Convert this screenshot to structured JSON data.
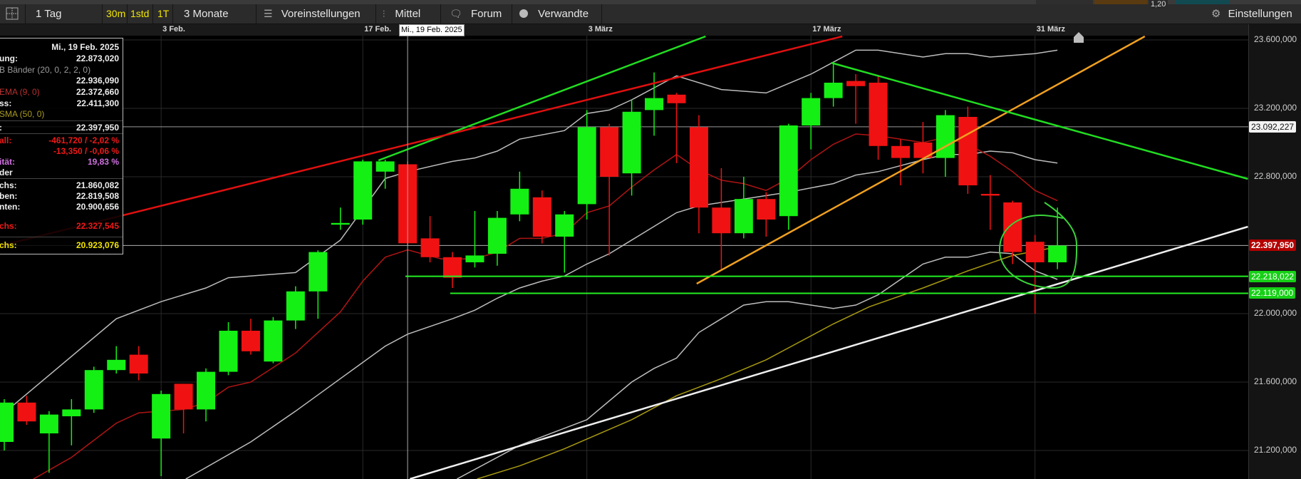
{
  "top_strip": {
    "value": "1,20"
  },
  "toolbar": {
    "layout_icon": "grid-layout-icon",
    "period": "1 Tag",
    "intervals": [
      "30m",
      "1std",
      "1T"
    ],
    "range": "3 Monate",
    "presets": "Voreinstellungen",
    "indicators": "Mittel",
    "forum": "Forum",
    "related": "Verwandte",
    "settings": "Einstellungen"
  },
  "info_panel": {
    "date": "Mi., 19 Feb. 2025",
    "open_label": "ung:",
    "open_value": "22.873,020",
    "bb_legend": "B Bänder (20, 0, 2, 2, 0)",
    "bb_value": "22.936,090",
    "ema_legend": "EMA (9, 0)",
    "ema_value": "22.372,660",
    "close_label": "ss:",
    "close_value": "22.411,300",
    "sma_legend": "SMA (50, 0)",
    "last_label": ":",
    "last_value": "22.397,950",
    "change_label": "all:",
    "change_value": "-461,720 / -2,02 %",
    "change2_value": "-13,350 / -0,06 %",
    "volatility_label": "ität:",
    "volatility_value": "19,83 %",
    "bands_label": "der",
    "row1_label": "chs:",
    "row1_value": "21.860,082",
    "row2_label": "ben:",
    "row2_value": "22.819,508",
    "row3_label": "nten:",
    "row3_value": "20.900,656",
    "row4_label": "chs:",
    "row4_value": "22.327,545",
    "row5_label": "chs:",
    "row5_value": "20.923,076"
  },
  "crosshair": {
    "index": 18,
    "label": "Mi., 19 Feb. 2025"
  },
  "colors": {
    "up": "#14f014",
    "down": "#f01212",
    "bb": "#bdbdbd",
    "ema": "#b01414",
    "sma": "#a89a10",
    "background": "#000000"
  },
  "chart_data": {
    "type": "candlestick",
    "ylim": [
      21033300,
      23650000
    ],
    "grid": true,
    "x_ticks": [
      {
        "index": 7,
        "label": "3 Feb."
      },
      {
        "index": 16,
        "label": "17 Feb."
      },
      {
        "index": 26,
        "label": "3 März"
      },
      {
        "index": 36,
        "label": "17 März"
      },
      {
        "index": 46,
        "label": "31 März"
      }
    ],
    "y_ticks": [
      {
        "value": 23600000,
        "label": "23.600,000"
      },
      {
        "value": 23200000,
        "label": "23.200,000"
      },
      {
        "value": 22800000,
        "label": "22.800,000"
      },
      {
        "value": 22400000,
        "label": ""
      },
      {
        "value": 22000000,
        "label": "22.000,000"
      },
      {
        "value": 21600000,
        "label": "21.600,000"
      },
      {
        "value": 21200000,
        "label": "21.200,000"
      }
    ],
    "candles_ohlc": [
      [
        21250000,
        21500000,
        21200000,
        21480000
      ],
      [
        21480000,
        21520000,
        21350000,
        21370000
      ],
      [
        21300000,
        21430000,
        21070000,
        21410000
      ],
      [
        21400000,
        21500000,
        21230000,
        21440000
      ],
      [
        21440000,
        21690000,
        21420000,
        21670000
      ],
      [
        21670000,
        21810000,
        21650000,
        21730000
      ],
      [
        21760000,
        21810000,
        21610000,
        21650000
      ],
      [
        21270000,
        21550000,
        21050000,
        21530000
      ],
      [
        21590000,
        21590000,
        21300000,
        21440000
      ],
      [
        21440000,
        21680000,
        21370000,
        21660000
      ],
      [
        21660000,
        21950000,
        21640000,
        21900000
      ],
      [
        21900000,
        21970000,
        21760000,
        21780000
      ],
      [
        21720000,
        21980000,
        21710000,
        21960000
      ],
      [
        21960000,
        22160000,
        21910000,
        22130000
      ],
      [
        22130000,
        22370000,
        21970000,
        22360000
      ],
      [
        22520000,
        22620000,
        22490000,
        22530000
      ],
      [
        22550000,
        22900000,
        22520000,
        22890000
      ],
      [
        22830000,
        22900000,
        22730000,
        22890000
      ],
      [
        22873020,
        22890000,
        22400000,
        22411300
      ],
      [
        22440000,
        22570000,
        22300000,
        22330000
      ],
      [
        22330000,
        22360000,
        22150000,
        22210000
      ],
      [
        22300000,
        22600000,
        22270000,
        22340000
      ],
      [
        22350000,
        22600000,
        22280000,
        22560000
      ],
      [
        22580000,
        22830000,
        22540000,
        22730000
      ],
      [
        22680000,
        22720000,
        22410000,
        22450000
      ],
      [
        22450000,
        22600000,
        22240000,
        22580000
      ],
      [
        22640000,
        23190000,
        22550000,
        23090000
      ],
      [
        23090000,
        23110000,
        22340000,
        22800000
      ],
      [
        22820000,
        23250000,
        22690000,
        23180000
      ],
      [
        23190000,
        23410000,
        23040000,
        23260000
      ],
      [
        23280000,
        23290000,
        22880000,
        23230000
      ],
      [
        23090000,
        23160000,
        22470000,
        22620000
      ],
      [
        22620000,
        22850000,
        22260000,
        22470000
      ],
      [
        22470000,
        22800000,
        22440000,
        22670000
      ],
      [
        22670000,
        22710000,
        22450000,
        22550000
      ],
      [
        22570000,
        23110000,
        22490000,
        23100000
      ],
      [
        23100000,
        23290000,
        22960000,
        23260000
      ],
      [
        23260000,
        23460000,
        23210000,
        23350000
      ],
      [
        23360000,
        23400000,
        23110000,
        23330000
      ],
      [
        23350000,
        23390000,
        22900000,
        22980000
      ],
      [
        22980000,
        23020000,
        22750000,
        22910000
      ],
      [
        23000000,
        23120000,
        22820000,
        22910000
      ],
      [
        22910000,
        23190000,
        22800000,
        23160000
      ],
      [
        23150000,
        23210000,
        22700000,
        22750000
      ],
      [
        22700000,
        22810000,
        22490000,
        22690000
      ],
      [
        22650000,
        22660000,
        22290000,
        22360000
      ],
      [
        22420000,
        22460000,
        22000000,
        22300000
      ],
      [
        22300000,
        22620000,
        22260000,
        22397950
      ]
    ],
    "overlays": [
      {
        "name": "B Bänder (20, 0, 2, 2, 0)",
        "role": "bb-upper",
        "points": [
          [
            0,
            21420000
          ],
          [
            5,
            21970000
          ],
          [
            7,
            22070000
          ],
          [
            9,
            22150000
          ],
          [
            10,
            22210000
          ],
          [
            13,
            22240000
          ],
          [
            15,
            22430000
          ],
          [
            17,
            22790000
          ],
          [
            18,
            22830000
          ],
          [
            20,
            22890000
          ],
          [
            21,
            22910000
          ],
          [
            22,
            22950000
          ],
          [
            23,
            23020000
          ],
          [
            25,
            23070000
          ],
          [
            26,
            23170000
          ],
          [
            27,
            23190000
          ],
          [
            28,
            23250000
          ],
          [
            30,
            23390000
          ],
          [
            32,
            23310000
          ],
          [
            34,
            23290000
          ],
          [
            36,
            23400000
          ],
          [
            37,
            23470000
          ],
          [
            38,
            23540000
          ],
          [
            39,
            23540000
          ],
          [
            41,
            23500000
          ],
          [
            42,
            23520000
          ],
          [
            43,
            23520000
          ],
          [
            44,
            23500000
          ],
          [
            46,
            23520000
          ],
          [
            47,
            23540000
          ]
        ]
      },
      {
        "name": "B Bänder (20, 0, 2, 2, 0)",
        "role": "bb-middle",
        "points": [
          [
            8.1,
            21033300
          ],
          [
            11,
            21250000
          ],
          [
            13,
            21430000
          ],
          [
            15,
            21620000
          ],
          [
            17,
            21810000
          ],
          [
            18,
            21880000
          ],
          [
            20,
            21970000
          ],
          [
            21,
            22020000
          ],
          [
            22,
            22090000
          ],
          [
            23,
            22150000
          ],
          [
            24,
            22190000
          ],
          [
            25,
            22220000
          ],
          [
            26,
            22290000
          ],
          [
            27,
            22350000
          ],
          [
            28,
            22430000
          ],
          [
            29,
            22510000
          ],
          [
            30,
            22590000
          ],
          [
            31,
            22630000
          ],
          [
            32,
            22650000
          ],
          [
            33,
            22670000
          ],
          [
            34,
            22690000
          ],
          [
            35,
            22710000
          ],
          [
            37,
            22760000
          ],
          [
            38,
            22810000
          ],
          [
            39,
            22830000
          ],
          [
            41,
            22900000
          ],
          [
            42,
            22930000
          ],
          [
            43,
            22930000
          ],
          [
            44,
            22950000
          ],
          [
            45,
            22940000
          ],
          [
            46,
            22900000
          ],
          [
            47,
            22880000
          ]
        ]
      },
      {
        "name": "B Bänder (20, 0, 2, 2, 0)",
        "role": "bb-lower",
        "points": [
          [
            20.2,
            21033300
          ],
          [
            23,
            21230000
          ],
          [
            25,
            21330000
          ],
          [
            26,
            21380000
          ],
          [
            28,
            21600000
          ],
          [
            29,
            21680000
          ],
          [
            30,
            21740000
          ],
          [
            31,
            21890000
          ],
          [
            32,
            21970000
          ],
          [
            33,
            22050000
          ],
          [
            34,
            22070000
          ],
          [
            35,
            22070000
          ],
          [
            36,
            22050000
          ],
          [
            37,
            22030000
          ],
          [
            38,
            22050000
          ],
          [
            39,
            22110000
          ],
          [
            41,
            22290000
          ],
          [
            42,
            22330000
          ],
          [
            43,
            22330000
          ],
          [
            44,
            22360000
          ],
          [
            45,
            22350000
          ],
          [
            46,
            22250000
          ],
          [
            47,
            22200000
          ]
        ]
      },
      {
        "name": "EMA (9, 0)",
        "role": "ema",
        "points": [
          [
            1.3,
            21033300
          ],
          [
            3,
            21160000
          ],
          [
            5,
            21360000
          ],
          [
            6,
            21420000
          ],
          [
            8,
            21440000
          ],
          [
            9,
            21480000
          ],
          [
            10,
            21570000
          ],
          [
            11,
            21600000
          ],
          [
            13,
            21770000
          ],
          [
            15,
            22010000
          ],
          [
            16,
            22190000
          ],
          [
            17,
            22330000
          ],
          [
            18,
            22372660
          ],
          [
            19.5,
            22320000
          ],
          [
            21,
            22320000
          ],
          [
            22,
            22360000
          ],
          [
            23,
            22440000
          ],
          [
            24,
            22440000
          ],
          [
            25,
            22470000
          ],
          [
            26,
            22590000
          ],
          [
            27,
            22630000
          ],
          [
            28,
            22740000
          ],
          [
            29,
            22840000
          ],
          [
            30,
            22930000
          ],
          [
            31,
            22840000
          ],
          [
            32,
            22780000
          ],
          [
            33,
            22760000
          ],
          [
            34,
            22720000
          ],
          [
            35,
            22790000
          ],
          [
            36,
            22900000
          ],
          [
            37,
            22990000
          ],
          [
            38,
            23050000
          ],
          [
            39,
            23040000
          ],
          [
            40,
            23020000
          ],
          [
            41,
            23000000
          ],
          [
            42,
            23030000
          ],
          [
            43,
            22990000
          ],
          [
            44,
            22920000
          ],
          [
            45,
            22830000
          ],
          [
            46,
            22720000
          ],
          [
            47,
            22660000
          ]
        ]
      },
      {
        "name": "SMA (50, 0)",
        "role": "sma",
        "points": [
          [
            21.1,
            21033300
          ],
          [
            23,
            21110000
          ],
          [
            25,
            21210000
          ],
          [
            28,
            21380000
          ],
          [
            30,
            21520000
          ],
          [
            32,
            21620000
          ],
          [
            34,
            21730000
          ],
          [
            35,
            21800000
          ],
          [
            37,
            21940000
          ],
          [
            38.6,
            22040000
          ],
          [
            41,
            22150000
          ],
          [
            43,
            22250000
          ],
          [
            45,
            22340000
          ],
          [
            47,
            22390000
          ]
        ]
      }
    ],
    "trendlines": [
      {
        "color": "#22dd22",
        "from": [
          16.7,
          22895800
        ],
        "to": [
          31.3,
          23620800
        ]
      },
      {
        "color": "#e01010",
        "from": [
          -0.2,
          22395800
        ],
        "to": [
          37.4,
          23620800
        ]
      },
      {
        "color": "#f0a020",
        "from": [
          30.9,
          22175000
        ],
        "to": [
          50.9,
          23620800
        ]
      },
      {
        "color": "#22dd22",
        "from": [
          36.9,
          23466700
        ],
        "to": [
          55.5,
          22787500
        ]
      },
      {
        "color": "#eeeeee",
        "from": [
          18.1,
          21033300
        ],
        "to": [
          55.5,
          22508300
        ]
      }
    ],
    "horizontal_lines": [
      {
        "value": 22218022,
        "from_index": 17.9,
        "color": "#22ee22",
        "label": "22.218,022"
      },
      {
        "value": 22119000,
        "from_index": 19.9,
        "color": "#22ee22",
        "label": "22.119,000"
      }
    ],
    "price_lines": [
      {
        "value": 23092227,
        "label": "23.092,227",
        "tag_bg": "#f2f2f2",
        "tag_fg": "#111111"
      },
      {
        "value": 22397950,
        "label": "22.397,950",
        "tag_bg": "#b30000",
        "tag_fg": "#ffffff"
      }
    ]
  }
}
